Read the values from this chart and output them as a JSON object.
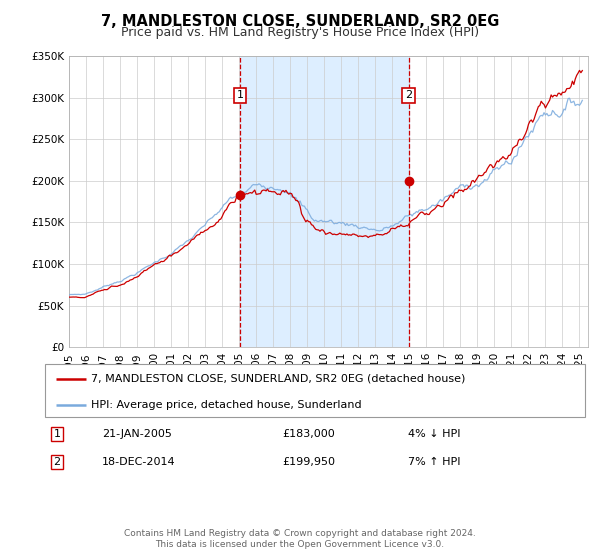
{
  "title": "7, MANDLESTON CLOSE, SUNDERLAND, SR2 0EG",
  "subtitle": "Price paid vs. HM Land Registry's House Price Index (HPI)",
  "legend_entry1": "7, MANDLESTON CLOSE, SUNDERLAND, SR2 0EG (detached house)",
  "legend_entry2": "HPI: Average price, detached house, Sunderland",
  "footer_line1": "Contains HM Land Registry data © Crown copyright and database right 2024.",
  "footer_line2": "This data is licensed under the Open Government Licence v3.0.",
  "sale1_label": "1",
  "sale1_date": "21-JAN-2005",
  "sale1_price": "£183,000",
  "sale1_hpi": "4% ↓ HPI",
  "sale2_label": "2",
  "sale2_date": "18-DEC-2014",
  "sale2_price": "£199,950",
  "sale2_hpi": "7% ↑ HPI",
  "sale1_x": 2005.05,
  "sale1_y": 183000,
  "sale2_x": 2014.96,
  "sale2_y": 199950,
  "vline1_x": 2005.05,
  "vline2_x": 2014.96,
  "shade_x1": 2005.05,
  "shade_x2": 2014.96,
  "ylim_min": 0,
  "ylim_max": 350000,
  "xlim_min": 1995,
  "xlim_max": 2025.5,
  "yticks": [
    0,
    50000,
    100000,
    150000,
    200000,
    250000,
    300000,
    350000
  ],
  "ytick_labels": [
    "£0",
    "£50K",
    "£100K",
    "£150K",
    "£200K",
    "£250K",
    "£300K",
    "£350K"
  ],
  "xticks": [
    1995,
    1996,
    1997,
    1998,
    1999,
    2000,
    2001,
    2002,
    2003,
    2004,
    2005,
    2006,
    2007,
    2008,
    2009,
    2010,
    2011,
    2012,
    2013,
    2014,
    2015,
    2016,
    2017,
    2018,
    2019,
    2020,
    2021,
    2022,
    2023,
    2024,
    2025
  ],
  "line1_color": "#cc0000",
  "line2_color": "#7aaadd",
  "shade_color": "#ddeeff",
  "vline_color": "#cc0000",
  "grid_color": "#cccccc",
  "background_color": "#ffffff",
  "title_fontsize": 10.5,
  "subtitle_fontsize": 9,
  "axis_fontsize": 7.5,
  "legend_fontsize": 8,
  "footer_fontsize": 6.5
}
